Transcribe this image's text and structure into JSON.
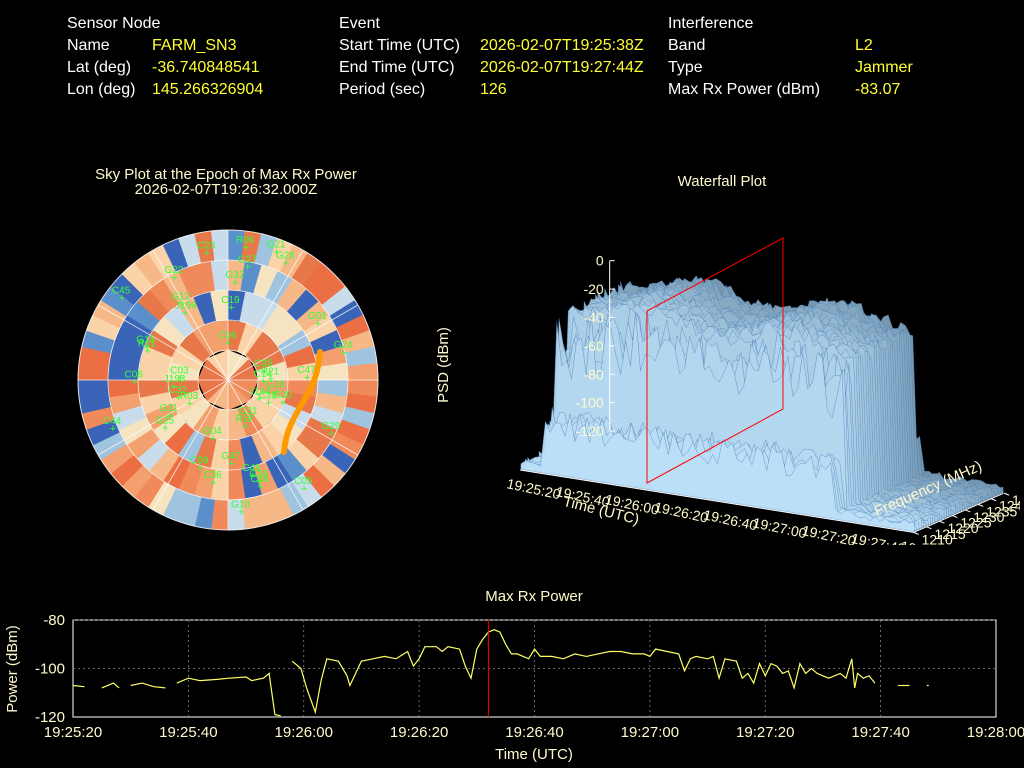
{
  "sensor": {
    "heading": "Sensor Node",
    "rows": [
      {
        "label": "Name",
        "value": "FARM_SN3"
      },
      {
        "label": "Lat (deg)",
        "value": "-36.740848541"
      },
      {
        "label": "Lon (deg)",
        "value": "145.266326904"
      }
    ]
  },
  "event": {
    "heading": "Event",
    "rows": [
      {
        "label": "Start Time (UTC)",
        "value": "2026-02-07T19:25:38Z"
      },
      {
        "label": "End Time (UTC)",
        "value": "2026-02-07T19:27:44Z"
      },
      {
        "label": "Period (sec)",
        "value": "126"
      }
    ]
  },
  "interference": {
    "heading": "Interference",
    "rows": [
      {
        "label": "Band",
        "value": "L2"
      },
      {
        "label": "Type",
        "value": "Jammer"
      },
      {
        "label": "Max Rx Power (dBm)",
        "value": "-83.07"
      }
    ]
  },
  "colors": {
    "label_yellow": "#ffff33",
    "title_cream": "#fffacd",
    "sat_green": "#33ff33",
    "marker_red": "#ff0000",
    "trail_orange": "#ff9900",
    "line_yellow": "#ffff66"
  },
  "skyplot": {
    "title_line1": "Sky Plot at the Epoch of Max Rx Power",
    "title_line2": "2026-02-07T19:26:32.000Z",
    "satellites": [
      "C08",
      "R06",
      "J193",
      "C32",
      "G12",
      "G15",
      "C19",
      "C06",
      "C09",
      "C46",
      "G04",
      "J199",
      "G29",
      "G28",
      "G01",
      "C35",
      "G32",
      "C23",
      "G18",
      "C38",
      "J194",
      "C45",
      "R17",
      "G26",
      "G47",
      "C47",
      "G22",
      "G25",
      "G30",
      "G21",
      "C05",
      "C03",
      "C49",
      "G31",
      "C36",
      "R11",
      "R21",
      "G11",
      "C14",
      "R03",
      "G10",
      "G27",
      "C44",
      "G24"
    ]
  },
  "waterfall": {
    "title": "Waterfall Plot",
    "zlabel": "PSD (dBm)",
    "xlabel": "Time (UTC)",
    "ylabel": "Frequency (MHz)",
    "z_ticks": [
      "0",
      "-20",
      "-40",
      "-60",
      "-80",
      "-100",
      "-120"
    ],
    "time_ticks": [
      "19:25:20",
      "19:25:40",
      "19:26:00",
      "19:26:20",
      "19:26:40",
      "19:27:00",
      "19:27:20",
      "19:27:40",
      "19:28:00"
    ],
    "freq_ticks": [
      "1210",
      "1215",
      "1220",
      "1225",
      "1230",
      "1235",
      "1240",
      "1245"
    ]
  },
  "chart_data": {
    "type": "line",
    "title": "Max Rx Power",
    "xlabel": "Time (UTC)",
    "ylabel": "Power (dBm)",
    "y_ticks": [
      "-80",
      "-100",
      "-120"
    ],
    "x_ticks": [
      "19:25:20",
      "19:25:40",
      "19:26:00",
      "19:26:20",
      "19:26:40",
      "19:27:00",
      "19:27:20",
      "19:27:40",
      "19:28:00"
    ],
    "ylim": [
      -120,
      -80
    ],
    "xlim_sec": [
      0,
      160
    ],
    "grid": true,
    "marker_time_sec": 72,
    "segments": [
      [
        [
          0,
          -107
        ],
        [
          2,
          -107.5
        ]
      ],
      [
        [
          5,
          -108
        ],
        [
          7,
          -106
        ],
        [
          8,
          -108
        ]
      ],
      [
        [
          10,
          -107
        ],
        [
          12,
          -106
        ],
        [
          14,
          -107.5
        ],
        [
          16,
          -108
        ]
      ],
      [
        [
          18,
          -106
        ],
        [
          20,
          -104
        ],
        [
          22,
          -105
        ],
        [
          25,
          -104.5
        ],
        [
          27,
          -104
        ],
        [
          30,
          -103.5
        ],
        [
          31,
          -105
        ],
        [
          33,
          -104
        ],
        [
          34,
          -102
        ],
        [
          35,
          -119
        ],
        [
          36,
          -119.5
        ]
      ],
      [
        [
          38,
          -97
        ],
        [
          39.5,
          -100
        ],
        [
          40.5,
          -108
        ],
        [
          42,
          -118
        ],
        [
          43,
          -105
        ],
        [
          44,
          -96
        ],
        [
          46,
          -97
        ],
        [
          47.5,
          -103
        ],
        [
          48,
          -107
        ],
        [
          50,
          -97
        ],
        [
          52,
          -96
        ],
        [
          54,
          -95
        ],
        [
          56,
          -96
        ],
        [
          58,
          -93
        ],
        [
          59,
          -99
        ],
        [
          60,
          -96
        ],
        [
          61,
          -91
        ],
        [
          63,
          -91
        ],
        [
          64,
          -93
        ],
        [
          65,
          -91
        ],
        [
          67,
          -92
        ],
        [
          68,
          -99
        ],
        [
          69,
          -104
        ],
        [
          70,
          -92
        ],
        [
          71,
          -88
        ],
        [
          72,
          -85
        ],
        [
          73,
          -84
        ],
        [
          74,
          -85
        ],
        [
          75,
          -90
        ],
        [
          76,
          -94
        ],
        [
          77,
          -94
        ],
        [
          79,
          -96
        ],
        [
          80,
          -92
        ],
        [
          81,
          -95
        ],
        [
          83,
          -95
        ],
        [
          85,
          -96
        ],
        [
          87,
          -94
        ],
        [
          89,
          -95
        ],
        [
          91,
          -94
        ],
        [
          93,
          -93
        ],
        [
          95,
          -93
        ],
        [
          97,
          -94
        ],
        [
          99,
          -94
        ],
        [
          100,
          -95
        ],
        [
          101,
          -92
        ],
        [
          103,
          -93
        ],
        [
          105,
          -94
        ],
        [
          106,
          -101
        ],
        [
          107,
          -96
        ],
        [
          108,
          -95
        ],
        [
          110,
          -96
        ],
        [
          111,
          -95
        ],
        [
          112,
          -104
        ],
        [
          113,
          -96
        ],
        [
          115,
          -97
        ],
        [
          116,
          -104
        ],
        [
          117,
          -102
        ],
        [
          118,
          -106
        ],
        [
          119,
          -98
        ],
        [
          120,
          -103
        ],
        [
          121,
          -98
        ],
        [
          122,
          -99
        ],
        [
          123,
          -102
        ],
        [
          124,
          -101
        ],
        [
          125,
          -108
        ],
        [
          126,
          -98
        ],
        [
          127,
          -102
        ],
        [
          128,
          -100
        ],
        [
          129,
          -102
        ],
        [
          130,
          -103
        ],
        [
          131,
          -104
        ],
        [
          132,
          -103
        ],
        [
          133,
          -102
        ],
        [
          134,
          -104
        ],
        [
          135,
          -96
        ],
        [
          135.5,
          -108
        ],
        [
          136,
          -102
        ],
        [
          137,
          -104
        ],
        [
          138,
          -103
        ],
        [
          139,
          -106
        ]
      ],
      [
        [
          143,
          -107
        ],
        [
          145,
          -107
        ]
      ],
      [
        [
          148,
          -107
        ]
      ]
    ]
  }
}
